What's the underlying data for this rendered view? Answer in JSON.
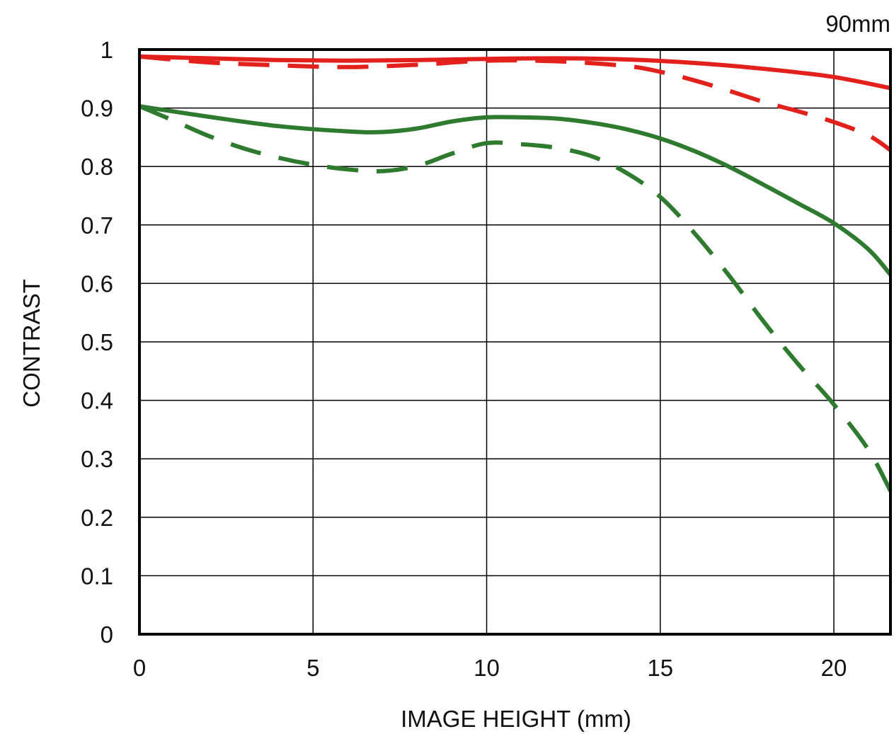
{
  "chart_data": {
    "type": "line",
    "title": "90mm",
    "xlabel": "IMAGE HEIGHT (mm)",
    "ylabel": "CONTRAST",
    "xlim": [
      0,
      21.63
    ],
    "ylim": [
      0,
      1
    ],
    "x_ticks": [
      0,
      5,
      10,
      15,
      20
    ],
    "y_ticks": [
      0,
      0.1,
      0.2,
      0.3,
      0.4,
      0.5,
      0.6,
      0.7,
      0.8,
      0.9,
      1
    ],
    "y_tick_labels": [
      "0",
      "0.1",
      "0.2",
      "0.3",
      "0.4",
      "0.5",
      "0.6",
      "0.7",
      "0.8",
      "0.9",
      "1"
    ],
    "grid": true,
    "colors": {
      "red": "#e3211c",
      "green": "#2e7a2e",
      "grid": "#000000"
    },
    "series": [
      {
        "color": "#e3211c",
        "style": "solid",
        "points": [
          [
            0,
            0.988
          ],
          [
            2,
            0.985
          ],
          [
            4,
            0.982
          ],
          [
            6,
            0.981
          ],
          [
            8,
            0.982
          ],
          [
            10,
            0.984
          ],
          [
            12,
            0.985
          ],
          [
            14,
            0.983
          ],
          [
            16,
            0.977
          ],
          [
            18,
            0.967
          ],
          [
            20,
            0.953
          ],
          [
            21.63,
            0.934
          ]
        ]
      },
      {
        "color": "#e3211c",
        "style": "dashed",
        "points": [
          [
            0,
            0.988
          ],
          [
            2,
            0.978
          ],
          [
            4,
            0.973
          ],
          [
            6,
            0.97
          ],
          [
            8,
            0.974
          ],
          [
            10,
            0.981
          ],
          [
            12,
            0.98
          ],
          [
            14,
            0.972
          ],
          [
            15,
            0.962
          ],
          [
            16,
            0.947
          ],
          [
            17,
            0.929
          ],
          [
            18,
            0.91
          ],
          [
            19,
            0.894
          ],
          [
            20,
            0.876
          ],
          [
            21,
            0.853
          ],
          [
            21.63,
            0.828
          ]
        ]
      },
      {
        "color": "#2e7a2e",
        "style": "solid",
        "points": [
          [
            0,
            0.903
          ],
          [
            2,
            0.885
          ],
          [
            4,
            0.869
          ],
          [
            6,
            0.86
          ],
          [
            7,
            0.859
          ],
          [
            8,
            0.865
          ],
          [
            9,
            0.877
          ],
          [
            10,
            0.884
          ],
          [
            11,
            0.884
          ],
          [
            12,
            0.882
          ],
          [
            13,
            0.875
          ],
          [
            14,
            0.864
          ],
          [
            15,
            0.848
          ],
          [
            16,
            0.826
          ],
          [
            17,
            0.799
          ],
          [
            18,
            0.768
          ],
          [
            19,
            0.736
          ],
          [
            20,
            0.703
          ],
          [
            21,
            0.658
          ],
          [
            21.63,
            0.615
          ]
        ]
      },
      {
        "color": "#2e7a2e",
        "style": "dashed",
        "points": [
          [
            0,
            0.903
          ],
          [
            1,
            0.878
          ],
          [
            2,
            0.852
          ],
          [
            3,
            0.831
          ],
          [
            4,
            0.815
          ],
          [
            5,
            0.803
          ],
          [
            6,
            0.795
          ],
          [
            7,
            0.792
          ],
          [
            8,
            0.801
          ],
          [
            9,
            0.822
          ],
          [
            10,
            0.84
          ],
          [
            11,
            0.838
          ],
          [
            12,
            0.832
          ],
          [
            13,
            0.818
          ],
          [
            14,
            0.79
          ],
          [
            15,
            0.748
          ],
          [
            16,
            0.685
          ],
          [
            17,
            0.612
          ],
          [
            18,
            0.533
          ],
          [
            19,
            0.46
          ],
          [
            20,
            0.393
          ],
          [
            21,
            0.315
          ],
          [
            21.63,
            0.245
          ]
        ]
      }
    ]
  }
}
